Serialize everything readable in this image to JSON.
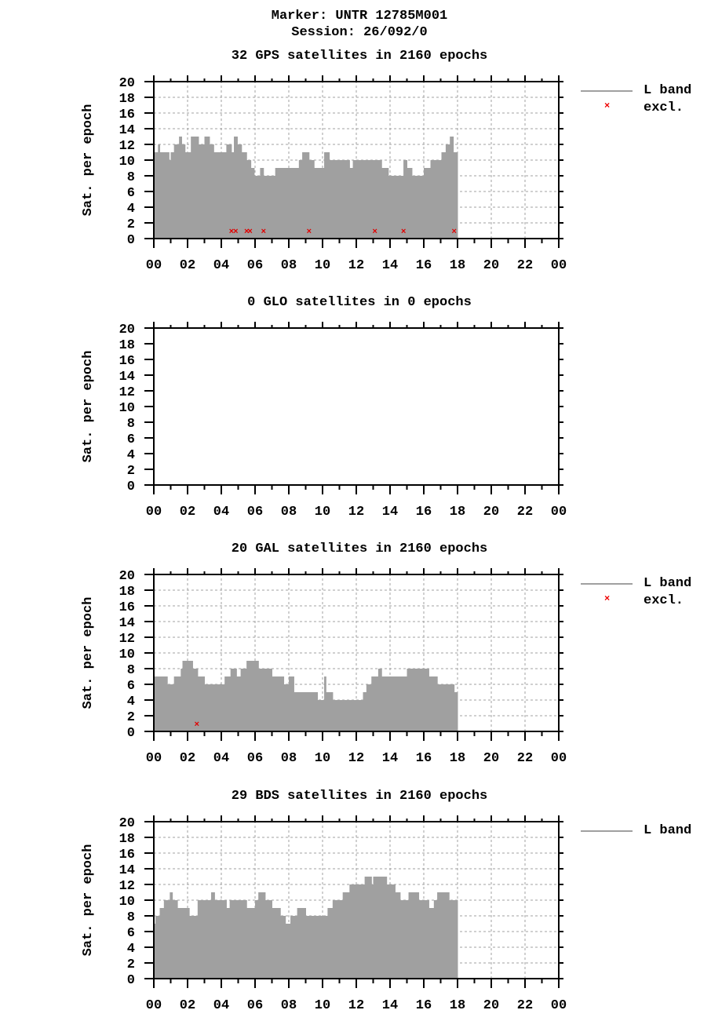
{
  "header": {
    "marker": "Marker: UNTR 12785M001",
    "session": "Session: 26/092/0"
  },
  "colors": {
    "bar": "#a0a0a0",
    "excl": "#e00000",
    "grid": "#a0a0a0"
  },
  "legend": {
    "lband": "L band",
    "excl": "excl."
  },
  "chart_data": [
    {
      "type": "area",
      "title": "32 GPS satellites in 2160 epochs",
      "ylabel": "Sat. per epoch",
      "xlabel": "",
      "ylim": [
        0,
        20
      ],
      "xlim_hours": [
        0,
        24
      ],
      "yticks": [
        "0",
        "2",
        "4",
        "6",
        "8",
        "10",
        "12",
        "14",
        "16",
        "18",
        "20"
      ],
      "xticks": [
        "00",
        "02",
        "04",
        "06",
        "08",
        "10",
        "12",
        "14",
        "16",
        "18",
        "20",
        "22",
        "00"
      ],
      "grid": true,
      "legend": [
        "L band",
        "excl."
      ],
      "series": [
        {
          "name": "L band",
          "step_hours": [
            0,
            0.25,
            0.35,
            0.9,
            1.0,
            1.2,
            1.5,
            1.65,
            1.85,
            2.2,
            2.65,
            3.0,
            3.3,
            3.55,
            4.3,
            4.6,
            4.75,
            4.95,
            5.2,
            5.5,
            5.75,
            5.95,
            6.3,
            6.5,
            7.2,
            7.6,
            8.6,
            8.8,
            9.2,
            9.5,
            10.1,
            10.4,
            11.6,
            11.8,
            12.2,
            12.5,
            13.2,
            13.5,
            13.9,
            14.6,
            14.8,
            15.0,
            15.3,
            16.0,
            16.4,
            16.9,
            17.05,
            17.3,
            17.55,
            17.75,
            18.0
          ],
          "values": [
            11,
            12,
            11,
            10,
            11,
            12,
            13,
            12,
            11,
            13,
            12,
            13,
            12,
            11,
            12,
            11,
            13,
            12,
            11,
            10,
            9,
            8,
            9,
            8,
            9,
            9,
            10,
            11,
            10,
            9,
            11,
            10,
            9,
            10,
            10,
            10,
            10,
            9,
            8,
            8,
            10,
            9,
            8,
            9,
            10,
            10,
            11,
            12,
            13,
            11,
            10
          ]
        }
      ],
      "excluded_points": {
        "hours": [
          4.6,
          4.85,
          5.5,
          5.7,
          6.5,
          9.2,
          13.1,
          14.8,
          17.8
        ],
        "value": 1
      }
    },
    {
      "type": "area",
      "title": "0 GLO satellites in 0 epochs",
      "ylabel": "Sat. per epoch",
      "ylim": [
        0,
        20
      ],
      "xlim_hours": [
        0,
        24
      ],
      "yticks": [
        "0",
        "2",
        "4",
        "6",
        "8",
        "10",
        "12",
        "14",
        "16",
        "18",
        "20"
      ],
      "xticks": [
        "00",
        "02",
        "04",
        "06",
        "08",
        "10",
        "12",
        "14",
        "16",
        "18",
        "20",
        "22",
        "00"
      ],
      "grid": false,
      "series": []
    },
    {
      "type": "area",
      "title": "20 GAL satellites in 2160 epochs",
      "ylabel": "Sat. per epoch",
      "ylim": [
        0,
        20
      ],
      "xlim_hours": [
        0,
        24
      ],
      "yticks": [
        "0",
        "2",
        "4",
        "6",
        "8",
        "10",
        "12",
        "14",
        "16",
        "18",
        "20"
      ],
      "xticks": [
        "00",
        "02",
        "04",
        "06",
        "08",
        "10",
        "12",
        "14",
        "16",
        "18",
        "20",
        "22",
        "00"
      ],
      "grid": true,
      "legend": [
        "L band",
        "excl."
      ],
      "series": [
        {
          "name": "L band",
          "step_hours": [
            0,
            0.8,
            1.2,
            1.6,
            1.7,
            2.3,
            2.6,
            3.0,
            4.2,
            4.55,
            4.9,
            5.15,
            5.5,
            6.2,
            7.0,
            7.7,
            8.0,
            8.3,
            9.5,
            9.7,
            10.1,
            10.2,
            10.6,
            12.0,
            12.4,
            12.6,
            12.9,
            13.3,
            13.5,
            14.3,
            15.0,
            15.5,
            16.3,
            16.8,
            17.4,
            17.8,
            18.0
          ],
          "values": [
            7,
            6,
            7,
            8,
            9,
            8,
            7,
            6,
            7,
            8,
            7,
            8,
            9,
            8,
            7,
            6,
            7,
            5,
            5,
            4,
            7,
            5,
            4,
            4,
            5,
            6,
            7,
            8,
            7,
            7,
            8,
            8,
            7,
            6,
            6,
            5,
            0
          ]
        }
      ],
      "excluded_points": {
        "hours": [
          2.55
        ],
        "value": 1
      }
    },
    {
      "type": "area",
      "title": "29 BDS satellites in 2160 epochs",
      "ylabel": "Sat. per epoch",
      "ylim": [
        0,
        20
      ],
      "xlim_hours": [
        0,
        24
      ],
      "yticks": [
        "0",
        "2",
        "4",
        "6",
        "8",
        "10",
        "12",
        "14",
        "16",
        "18",
        "20"
      ],
      "xticks": [
        "00",
        "02",
        "04",
        "06",
        "08",
        "10",
        "12",
        "14",
        "16",
        "18",
        "20",
        "22",
        "00"
      ],
      "grid": true,
      "legend": [
        "L band"
      ],
      "series": [
        {
          "name": "L band",
          "step_hours": [
            0,
            0.1,
            0.35,
            0.6,
            0.95,
            1.1,
            1.4,
            2.1,
            2.5,
            2.6,
            3.4,
            3.6,
            4.3,
            4.5,
            5.5,
            6.0,
            6.2,
            6.6,
            7.0,
            7.5,
            7.8,
            8.1,
            8.5,
            9.0,
            10.0,
            10.3,
            10.6,
            11.2,
            11.6,
            12.5,
            12.9,
            13.0,
            13.8,
            14.3,
            14.6,
            15.1,
            15.7,
            16.3,
            16.6,
            16.8,
            17.5,
            18.0
          ],
          "values": [
            7,
            8,
            9,
            10,
            11,
            10,
            9,
            8,
            8,
            10,
            11,
            10,
            9,
            10,
            9,
            10,
            11,
            10,
            9,
            8,
            7,
            8,
            9,
            8,
            8,
            9,
            10,
            11,
            12,
            13,
            12,
            13,
            12,
            11,
            10,
            11,
            10,
            9,
            10,
            11,
            10,
            0
          ]
        }
      ]
    }
  ]
}
